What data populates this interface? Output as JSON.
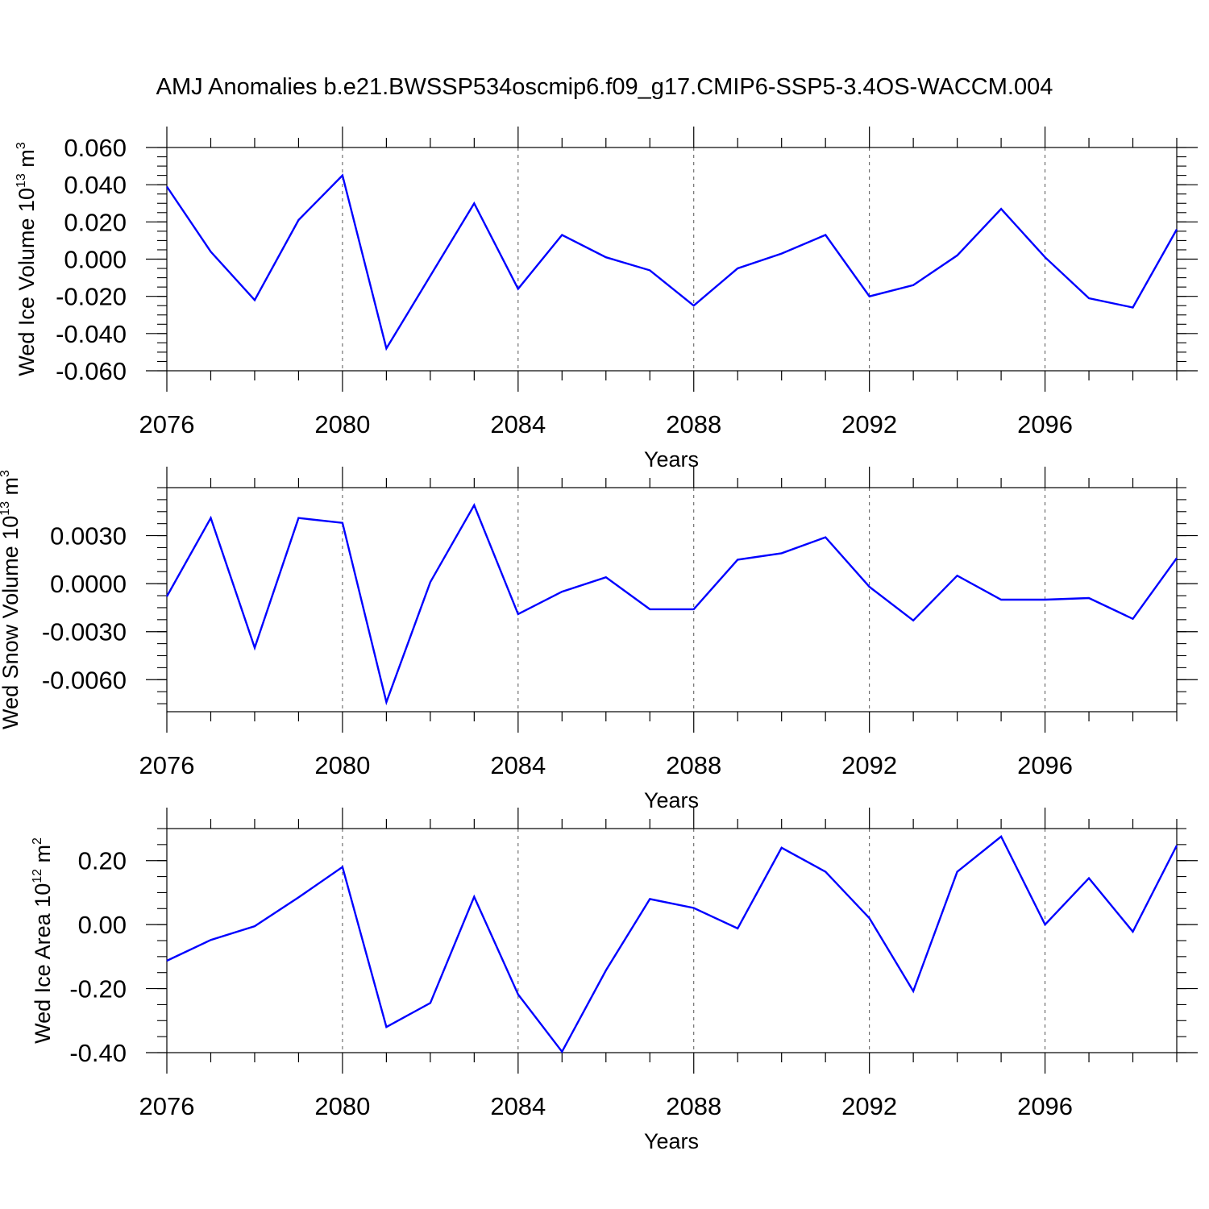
{
  "figure_title": "AMJ Anomalies b.e21.BWSSP534oscmip6.f09_g17.CMIP6-SSP5-3.4OS-WACCM.004",
  "colors": {
    "series": "#0000ff",
    "axis": "#000000",
    "grid": "#555555"
  },
  "chart_data": [
    {
      "type": "line",
      "ylabel": {
        "text": "Wed Ice Volume 10",
        "sup1": "13",
        "unit": " m",
        "sup2": "3"
      },
      "xlabel": "Years",
      "x": [
        2076,
        2077,
        2078,
        2079,
        2080,
        2081,
        2082,
        2083,
        2084,
        2085,
        2086,
        2087,
        2088,
        2089,
        2090,
        2091,
        2092,
        2093,
        2094,
        2095,
        2096,
        2097,
        2098,
        2099
      ],
      "values": [
        0.039,
        0.004,
        -0.022,
        0.021,
        0.045,
        -0.048,
        -0.009,
        0.03,
        -0.016,
        0.013,
        0.001,
        -0.006,
        -0.025,
        -0.005,
        0.003,
        0.013,
        -0.02,
        -0.014,
        0.002,
        0.027,
        0.001,
        -0.021,
        -0.026,
        0.016
      ],
      "xlim": [
        2076,
        2099
      ],
      "ylim": [
        -0.06,
        0.06
      ],
      "xticks": [
        "2076",
        "2080",
        "2084",
        "2088",
        "2092",
        "2096"
      ],
      "yticks": [
        {
          "value": 0.06,
          "label": "0.060"
        },
        {
          "value": 0.04,
          "label": "0.040"
        },
        {
          "value": 0.02,
          "label": "0.020"
        },
        {
          "value": 0.0,
          "label": "0.000"
        },
        {
          "value": -0.02,
          "label": "-0.020"
        },
        {
          "value": -0.04,
          "label": "-0.040"
        },
        {
          "value": -0.06,
          "label": "-0.060"
        }
      ],
      "yminor_step": 0.005
    },
    {
      "type": "line",
      "ylabel": {
        "text": "Wed Snow Volume 10",
        "sup1": "13",
        "unit": " m",
        "sup2": "3"
      },
      "xlabel": "Years",
      "x": [
        2076,
        2077,
        2078,
        2079,
        2080,
        2081,
        2082,
        2083,
        2084,
        2085,
        2086,
        2087,
        2088,
        2089,
        2090,
        2091,
        2092,
        2093,
        2094,
        2095,
        2096,
        2097,
        2098,
        2099
      ],
      "values": [
        -0.0008,
        0.0041,
        -0.004,
        0.0041,
        0.0038,
        -0.0074,
        0.0001,
        0.0049,
        -0.0019,
        -0.0005,
        0.0004,
        -0.0016,
        -0.0016,
        0.0015,
        0.0019,
        0.0029,
        -0.0002,
        -0.0023,
        0.0005,
        -0.001,
        -0.001,
        -0.0009,
        -0.0022,
        0.0016
      ],
      "xlim": [
        2076,
        2099
      ],
      "ylim": [
        -0.008,
        0.006
      ],
      "xticks": [
        "2076",
        "2080",
        "2084",
        "2088",
        "2092",
        "2096"
      ],
      "yticks": [
        {
          "value": 0.003,
          "label": "0.0030"
        },
        {
          "value": 0.0,
          "label": "0.0000"
        },
        {
          "value": -0.003,
          "label": "-0.0030"
        },
        {
          "value": -0.006,
          "label": "-0.0060"
        }
      ],
      "yminor_step": 0.00075
    },
    {
      "type": "line",
      "ylabel": {
        "text": "Wed Ice Area 10",
        "sup1": "12",
        "unit": " m",
        "sup2": "2"
      },
      "xlabel": "Years",
      "x": [
        2076,
        2077,
        2078,
        2079,
        2080,
        2081,
        2082,
        2083,
        2084,
        2085,
        2086,
        2087,
        2088,
        2089,
        2090,
        2091,
        2092,
        2093,
        2094,
        2095,
        2096,
        2097,
        2098,
        2099
      ],
      "values": [
        -0.113,
        -0.048,
        -0.005,
        0.085,
        0.18,
        -0.32,
        -0.245,
        0.087,
        -0.218,
        -0.397,
        -0.143,
        0.08,
        0.052,
        -0.012,
        0.24,
        0.165,
        0.02,
        -0.208,
        0.165,
        0.275,
        0.0,
        0.145,
        -0.022,
        0.247
      ],
      "xlim": [
        2076,
        2099
      ],
      "ylim": [
        -0.4,
        0.3
      ],
      "xticks": [
        "2076",
        "2080",
        "2084",
        "2088",
        "2092",
        "2096"
      ],
      "yticks": [
        {
          "value": 0.2,
          "label": "0.20"
        },
        {
          "value": 0.0,
          "label": "0.00"
        },
        {
          "value": -0.2,
          "label": "-0.20"
        },
        {
          "value": -0.4,
          "label": "-0.40"
        }
      ],
      "yminor_step": 0.05
    }
  ]
}
